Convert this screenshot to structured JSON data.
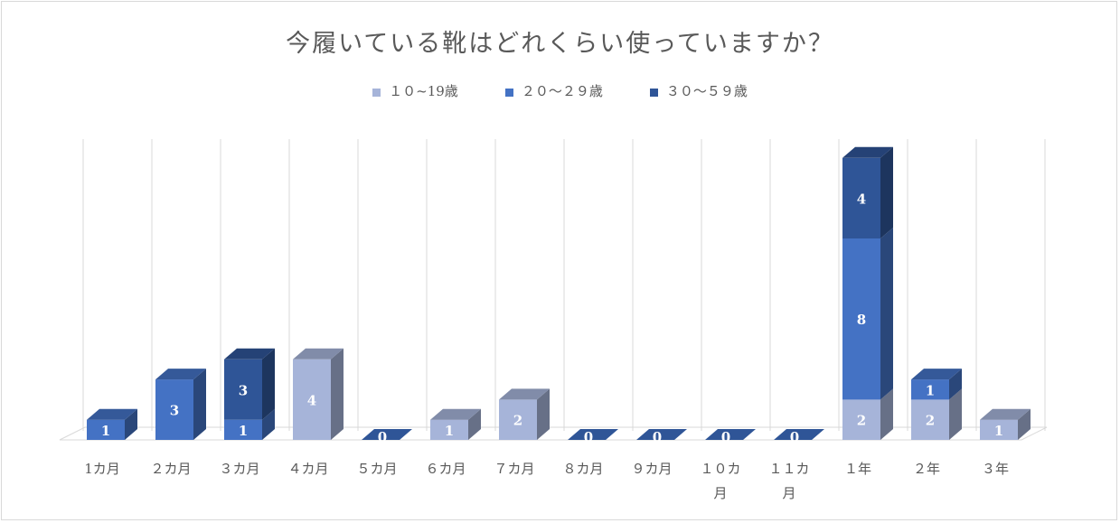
{
  "chart_data": {
    "type": "bar",
    "stacked": true,
    "three_d": true,
    "title": "今履いている靴はどれくらい使っていますか？",
    "categories": [
      [
        "1カ月"
      ],
      [
        "２カ月"
      ],
      [
        "３カ月"
      ],
      [
        "４カ月"
      ],
      [
        "５カ月"
      ],
      [
        "６カ月"
      ],
      [
        "７カ月"
      ],
      [
        "８カ月"
      ],
      [
        "９カ月"
      ],
      [
        "１０カ",
        "月"
      ],
      [
        "１１カ",
        "月"
      ],
      [
        "１年"
      ],
      [
        "２年"
      ],
      [
        "３年"
      ]
    ],
    "series": [
      {
        "name": "１０~19歳",
        "color": "#a6b4d9",
        "values": [
          0,
          0,
          0,
          4,
          0,
          1,
          2,
          0,
          0,
          0,
          0,
          2,
          2,
          1
        ]
      },
      {
        "name": "２０～２９歳",
        "color": "#4472c4",
        "values": [
          1,
          3,
          1,
          0,
          0,
          0,
          0,
          0,
          0,
          0,
          0,
          8,
          1,
          0
        ]
      },
      {
        "name": "３０～５９歳",
        "color": "#2f5597",
        "values": [
          0,
          0,
          3,
          0,
          0,
          0,
          0,
          0,
          0,
          0,
          0,
          4,
          0,
          0
        ]
      }
    ],
    "zero_label": "0",
    "gridlines": true,
    "legend_position": "top"
  }
}
